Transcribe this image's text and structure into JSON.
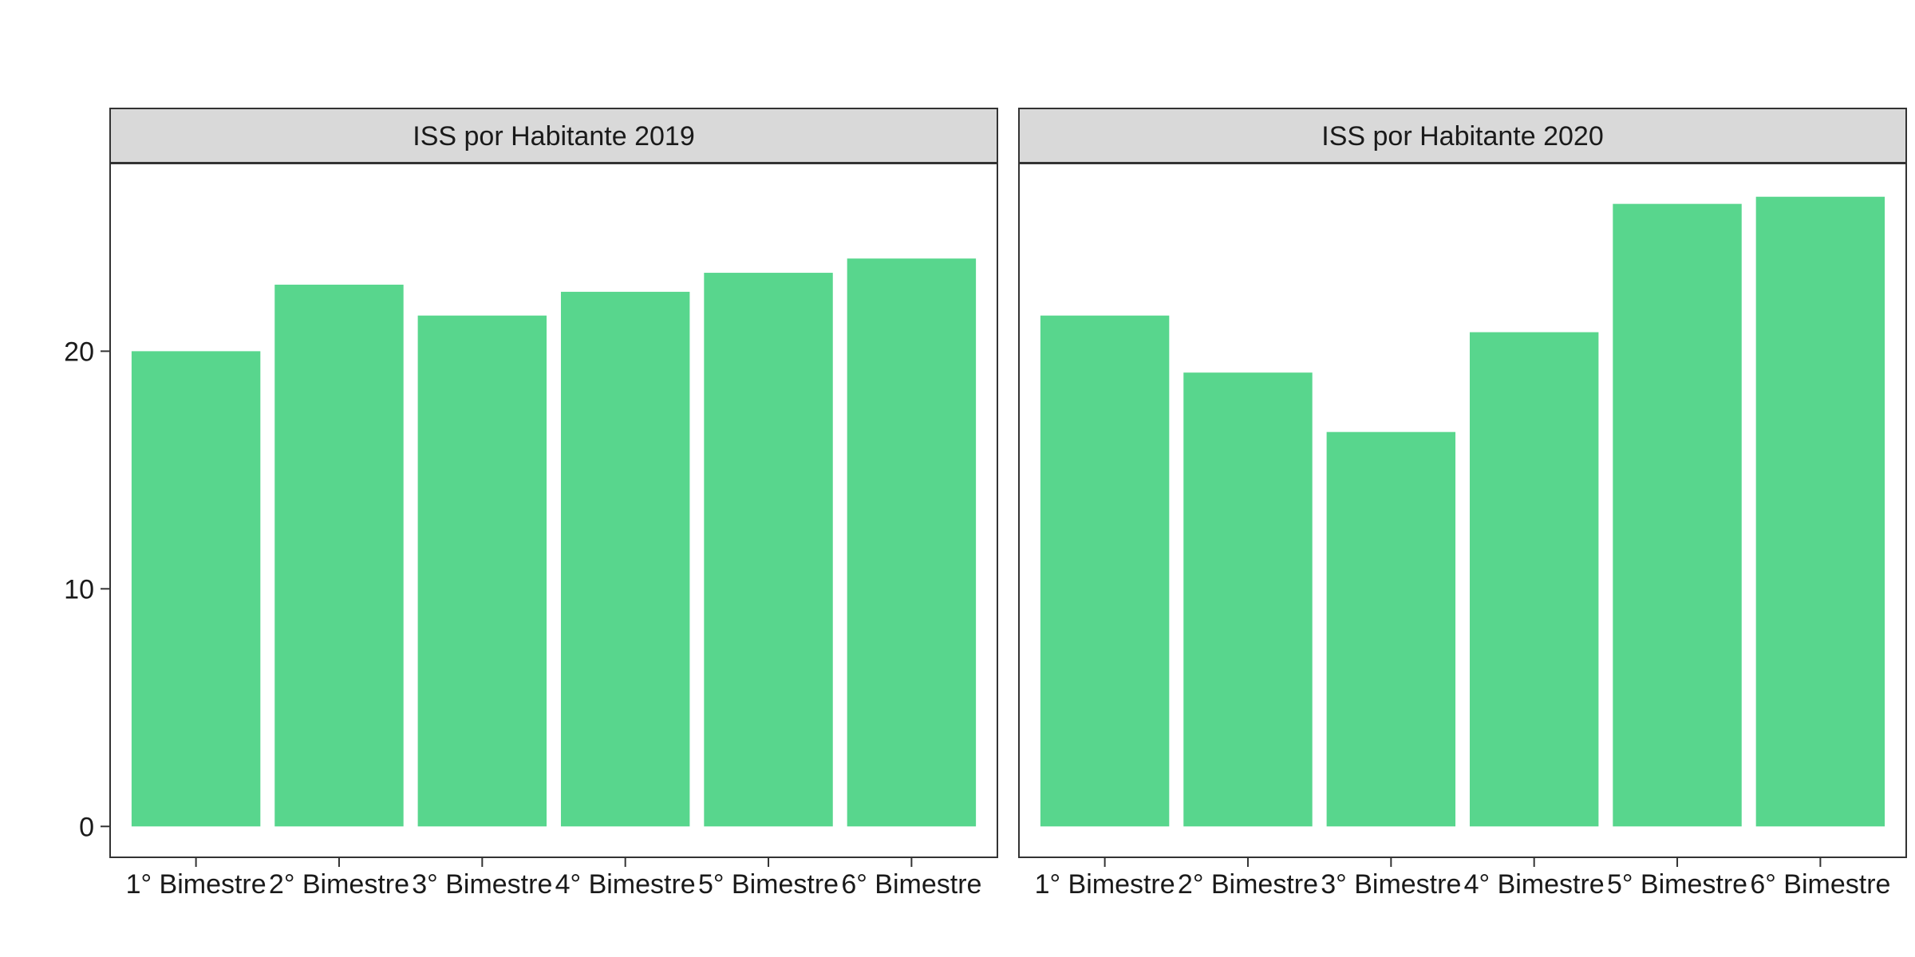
{
  "chart_data": {
    "type": "bar",
    "facets": [
      {
        "title": "ISS por Habitante 2019",
        "categories": [
          "1° Bimestre",
          "2° Bimestre",
          "3° Bimestre",
          "4° Bimestre",
          "5° Bimestre",
          "6° Bimestre"
        ],
        "values": [
          20.0,
          22.8,
          21.5,
          22.5,
          23.3,
          23.9
        ]
      },
      {
        "title": "ISS por Habitante 2020",
        "categories": [
          "1° Bimestre",
          "2° Bimestre",
          "3° Bimestre",
          "4° Bimestre",
          "5° Bimestre",
          "6° Bimestre"
        ],
        "values": [
          21.5,
          19.1,
          16.6,
          20.8,
          26.2,
          26.5
        ]
      }
    ],
    "xlabel": "",
    "ylabel": "",
    "ylim": [
      -1.3,
      27.9
    ],
    "yticks": [
      0,
      10,
      20
    ],
    "bar_color": "#58D68D",
    "strip_color": "#D9D9D9",
    "grid": false,
    "legend": "none"
  }
}
